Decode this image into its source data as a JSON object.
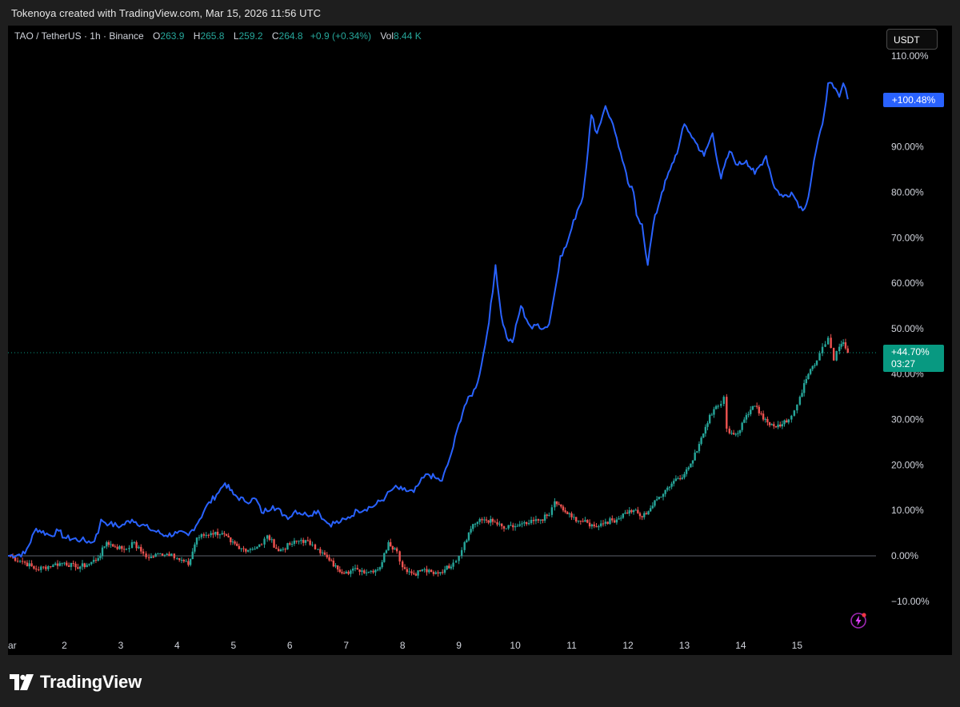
{
  "caption": "Tokenoya created with TradingView.com, Mar 15, 2026 11:56 UTC",
  "legend": {
    "symbol": "TAO / TetherUS",
    "interval": "1h",
    "exchange": "Binance",
    "open_label": "O",
    "open": "263.9",
    "high_label": "H",
    "high": "265.8",
    "low_label": "L",
    "low": "259.2",
    "close_label": "C",
    "close": "264.8",
    "change": "+0.9 (+0.34%)",
    "vol_label": "Vol",
    "vol": "8.44 K"
  },
  "currency_button": "USDT",
  "price_labels": {
    "blue_series_last": "+100.48%",
    "green_series_last": "+44.70%",
    "countdown": "03:27"
  },
  "logo_text": "TradingView",
  "colors": {
    "background": "#000000",
    "blue_line": "#2962ff",
    "up_candle": "#26a69a",
    "down_candle": "#ef5350",
    "bolt_icon": "#e040fb"
  },
  "chart_data": {
    "type": "line",
    "y_unit": "%",
    "ylim": [
      -14,
      112
    ],
    "y_ticks": [
      "110.00%",
      "90.00%",
      "80.00%",
      "70.00%",
      "60.00%",
      "50.00%",
      "40.00%",
      "30.00%",
      "20.00%",
      "10.00%",
      "0.00%",
      "−10.00%"
    ],
    "y_tick_values": [
      110,
      90,
      80,
      70,
      60,
      50,
      40,
      30,
      20,
      10,
      0,
      -10
    ],
    "x_ticks": [
      "ar",
      "2",
      "3",
      "4",
      "5",
      "6",
      "7",
      "8",
      "9",
      "10",
      "11",
      "12",
      "13",
      "14",
      "15"
    ],
    "x_tick_values": [
      1,
      2,
      3,
      4,
      5,
      6,
      7,
      8,
      9,
      10,
      11,
      12,
      13,
      14,
      15
    ],
    "xlim": [
      1,
      16.4
    ],
    "baseline": 0,
    "current_level": 44.7,
    "series": [
      {
        "style": "line",
        "points": [
          [
            1.0,
            0
          ],
          [
            1.3,
            0.5
          ],
          [
            1.5,
            6
          ],
          [
            1.75,
            4.5
          ],
          [
            1.9,
            5.5
          ],
          [
            2.0,
            4
          ],
          [
            2.3,
            3.5
          ],
          [
            2.5,
            3
          ],
          [
            2.6,
            5
          ],
          [
            2.65,
            8
          ],
          [
            2.8,
            7
          ],
          [
            3.0,
            6.5
          ],
          [
            3.2,
            8
          ],
          [
            3.5,
            6
          ],
          [
            3.8,
            4.5
          ],
          [
            4.0,
            5
          ],
          [
            4.2,
            4.5
          ],
          [
            4.4,
            8
          ],
          [
            4.5,
            10.5
          ],
          [
            4.7,
            13.5
          ],
          [
            4.85,
            16
          ],
          [
            5.0,
            13.5
          ],
          [
            5.2,
            12
          ],
          [
            5.4,
            12.5
          ],
          [
            5.5,
            9.5
          ],
          [
            5.7,
            11
          ],
          [
            5.9,
            9
          ],
          [
            6.0,
            8.5
          ],
          [
            6.1,
            10
          ],
          [
            6.3,
            9
          ],
          [
            6.5,
            10
          ],
          [
            6.6,
            8
          ],
          [
            6.7,
            7
          ],
          [
            6.9,
            7.5
          ],
          [
            7.0,
            8
          ],
          [
            7.2,
            10
          ],
          [
            7.5,
            11
          ],
          [
            7.7,
            13
          ],
          [
            7.85,
            15
          ],
          [
            8.0,
            14.5
          ],
          [
            8.2,
            14
          ],
          [
            8.3,
            16
          ],
          [
            8.45,
            18
          ],
          [
            8.6,
            17
          ],
          [
            8.7,
            16.5
          ],
          [
            8.8,
            20
          ],
          [
            8.9,
            24
          ],
          [
            9.0,
            29
          ],
          [
            9.1,
            33
          ],
          [
            9.3,
            37
          ],
          [
            9.4,
            42
          ],
          [
            9.5,
            49
          ],
          [
            9.6,
            58
          ],
          [
            9.65,
            64
          ],
          [
            9.75,
            53
          ],
          [
            9.85,
            48
          ],
          [
            9.95,
            47
          ],
          [
            10.1,
            55
          ],
          [
            10.2,
            52
          ],
          [
            10.3,
            50
          ],
          [
            10.4,
            51
          ],
          [
            10.5,
            50
          ],
          [
            10.6,
            51
          ],
          [
            10.7,
            58
          ],
          [
            10.8,
            66
          ],
          [
            10.9,
            68
          ],
          [
            11.0,
            72
          ],
          [
            11.1,
            76
          ],
          [
            11.2,
            79
          ],
          [
            11.35,
            97
          ],
          [
            11.45,
            93
          ],
          [
            11.55,
            97
          ],
          [
            11.6,
            99
          ],
          [
            11.7,
            96
          ],
          [
            11.8,
            92
          ],
          [
            11.9,
            87
          ],
          [
            12.0,
            82
          ],
          [
            12.1,
            80
          ],
          [
            12.15,
            75
          ],
          [
            12.25,
            73
          ],
          [
            12.35,
            64
          ],
          [
            12.45,
            73
          ],
          [
            12.6,
            80
          ],
          [
            12.75,
            85
          ],
          [
            12.9,
            90
          ],
          [
            13.0,
            95
          ],
          [
            13.1,
            93
          ],
          [
            13.2,
            91
          ],
          [
            13.35,
            88
          ],
          [
            13.5,
            93
          ],
          [
            13.65,
            83
          ],
          [
            13.8,
            89
          ],
          [
            13.95,
            86
          ],
          [
            14.1,
            87
          ],
          [
            14.25,
            84
          ],
          [
            14.45,
            88
          ],
          [
            14.6,
            81
          ],
          [
            14.75,
            79
          ],
          [
            14.9,
            80
          ],
          [
            15.0,
            78
          ],
          [
            15.1,
            76
          ],
          [
            15.2,
            79
          ],
          [
            15.3,
            87
          ],
          [
            15.45,
            95
          ],
          [
            15.55,
            104
          ],
          [
            15.65,
            103
          ],
          [
            15.75,
            101
          ],
          [
            15.82,
            104
          ],
          [
            15.9,
            100.48
          ]
        ]
      },
      {
        "style": "candles",
        "points": [
          [
            1.0,
            0
          ],
          [
            1.3,
            -1.5
          ],
          [
            1.5,
            -3
          ],
          [
            1.8,
            -2
          ],
          [
            2.0,
            -1.5
          ],
          [
            2.2,
            -2.5
          ],
          [
            2.4,
            -2
          ],
          [
            2.6,
            -0.5
          ],
          [
            2.75,
            3
          ],
          [
            2.9,
            2
          ],
          [
            3.1,
            1.5
          ],
          [
            3.2,
            3
          ],
          [
            3.4,
            0.5
          ],
          [
            3.5,
            -0.5
          ],
          [
            3.7,
            0.5
          ],
          [
            3.9,
            0.5
          ],
          [
            4.0,
            -0.5
          ],
          [
            4.2,
            -2
          ],
          [
            4.35,
            4
          ],
          [
            4.6,
            5
          ],
          [
            4.8,
            5
          ],
          [
            4.95,
            3
          ],
          [
            5.1,
            1.5
          ],
          [
            5.3,
            1.5
          ],
          [
            5.5,
            2.5
          ],
          [
            5.6,
            4.5
          ],
          [
            5.8,
            1
          ],
          [
            6.0,
            2.5
          ],
          [
            6.2,
            3.5
          ],
          [
            6.4,
            2.5
          ],
          [
            6.5,
            1.5
          ],
          [
            6.7,
            -1
          ],
          [
            6.85,
            -3
          ],
          [
            7.0,
            -3.5
          ],
          [
            7.2,
            -3
          ],
          [
            7.4,
            -3.5
          ],
          [
            7.6,
            -2.5
          ],
          [
            7.75,
            3
          ],
          [
            7.9,
            1
          ],
          [
            8.0,
            -2.5
          ],
          [
            8.2,
            -4
          ],
          [
            8.35,
            -3
          ],
          [
            8.55,
            -4
          ],
          [
            8.75,
            -3
          ],
          [
            8.9,
            -1.5
          ],
          [
            9.0,
            0
          ],
          [
            9.1,
            3
          ],
          [
            9.25,
            7
          ],
          [
            9.45,
            8
          ],
          [
            9.6,
            7.5
          ],
          [
            9.8,
            6
          ],
          [
            10.0,
            6.5
          ],
          [
            10.2,
            7
          ],
          [
            10.45,
            8
          ],
          [
            10.6,
            9
          ],
          [
            10.7,
            12
          ],
          [
            10.85,
            10
          ],
          [
            11.0,
            8.5
          ],
          [
            11.2,
            7.5
          ],
          [
            11.4,
            6.5
          ],
          [
            11.6,
            7.5
          ],
          [
            11.8,
            8
          ],
          [
            11.95,
            9.5
          ],
          [
            12.1,
            10
          ],
          [
            12.25,
            8.5
          ],
          [
            12.4,
            10.5
          ],
          [
            12.55,
            13
          ],
          [
            12.7,
            15
          ],
          [
            12.85,
            17
          ],
          [
            13.0,
            18
          ],
          [
            13.15,
            21
          ],
          [
            13.3,
            26
          ],
          [
            13.45,
            31
          ],
          [
            13.6,
            33
          ],
          [
            13.7,
            35
          ],
          [
            13.75,
            28
          ],
          [
            13.8,
            27
          ],
          [
            13.95,
            27
          ],
          [
            14.1,
            31
          ],
          [
            14.25,
            33
          ],
          [
            14.4,
            30
          ],
          [
            14.55,
            29
          ],
          [
            14.7,
            28.5
          ],
          [
            14.85,
            30
          ],
          [
            14.95,
            32
          ],
          [
            15.05,
            35
          ],
          [
            15.2,
            40
          ],
          [
            15.35,
            43
          ],
          [
            15.45,
            46
          ],
          [
            15.55,
            48
          ],
          [
            15.65,
            43
          ],
          [
            15.75,
            46
          ],
          [
            15.82,
            47
          ],
          [
            15.9,
            44.7
          ]
        ]
      }
    ]
  }
}
